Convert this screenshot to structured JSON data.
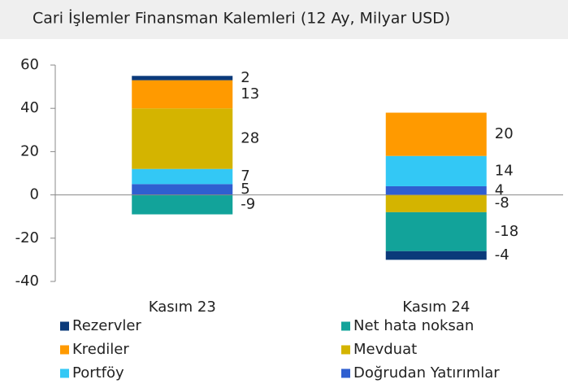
{
  "chart_data": {
    "type": "stacked_bar",
    "title": "Cari İşlemler Finansman Kalemleri (12 Ay, Milyar USD)",
    "categories": [
      "Kasım 23",
      "Kasım 24"
    ],
    "series": [
      {
        "name": "Rezervler",
        "color": "#0b3a7a",
        "values": [
          2,
          -4
        ]
      },
      {
        "name": "Net hata noksan",
        "color": "#12a39a",
        "values": [
          -9,
          -18
        ]
      },
      {
        "name": "Krediler",
        "color": "#ff9a00",
        "values": [
          13,
          20
        ]
      },
      {
        "name": "Mevduat",
        "color": "#d4b400",
        "values": [
          28,
          -8
        ]
      },
      {
        "name": "Portföy",
        "color": "#33c8f5",
        "values": [
          7,
          14
        ]
      },
      {
        "name": "Doğrudan Yatırımlar",
        "color": "#2f5fd0",
        "values": [
          5,
          4
        ]
      }
    ],
    "ylim": [
      -40,
      60
    ],
    "yticks": [
      -40,
      -20,
      0,
      20,
      40,
      60
    ]
  }
}
